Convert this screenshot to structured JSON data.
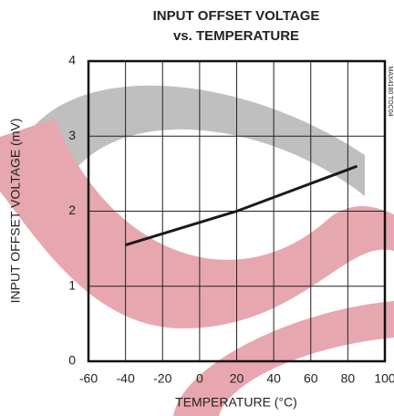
{
  "chart_data": {
    "type": "line",
    "title": "INPUT OFFSET VOLTAGE",
    "subtitle": "vs. TEMPERATURE",
    "x_label": "TEMPERATURE (°C)",
    "y_label": "INPUT OFFSET VOLTAGE (mV)",
    "annotation": "MAX4180 TOC04",
    "x": [
      -40,
      20,
      85
    ],
    "values": [
      1.55,
      2.0,
      2.6
    ],
    "color": "#1a1a1a",
    "xlim": [
      -60,
      100
    ],
    "xticks": [
      -60,
      -40,
      -20,
      0,
      20,
      40,
      60,
      80,
      100
    ],
    "ylim": [
      0,
      4
    ],
    "yticks": [
      0,
      1,
      2,
      3,
      4
    ],
    "grid": true
  }
}
